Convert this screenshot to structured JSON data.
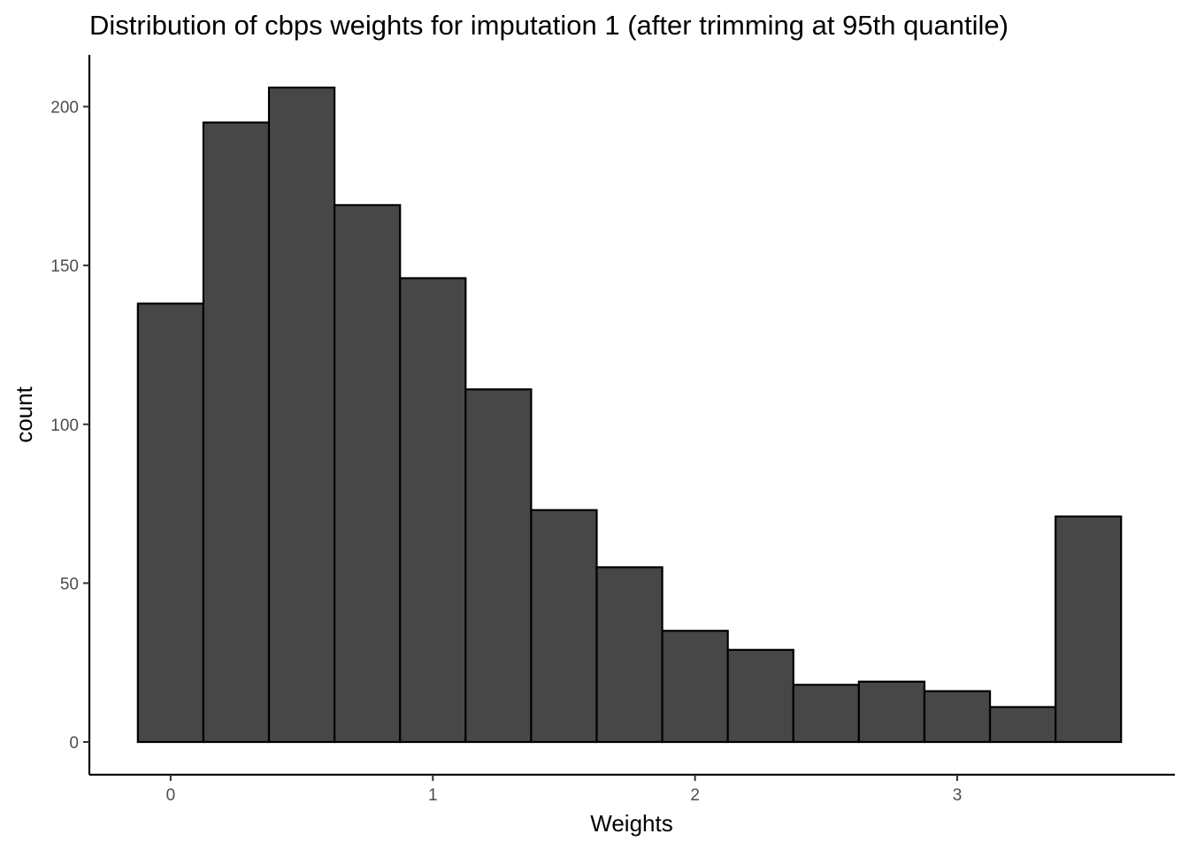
{
  "chart_data": {
    "type": "bar",
    "title": "Distribution of cbps weights for imputation 1 (after trimming at 95th quantile)",
    "xlabel": "Weights",
    "ylabel": "count",
    "bin_width": 0.25,
    "bins": [
      {
        "x_start": -0.125,
        "x_end": 0.125,
        "count": 138
      },
      {
        "x_start": 0.125,
        "x_end": 0.375,
        "count": 195
      },
      {
        "x_start": 0.375,
        "x_end": 0.625,
        "count": 206
      },
      {
        "x_start": 0.625,
        "x_end": 0.875,
        "count": 169
      },
      {
        "x_start": 0.875,
        "x_end": 1.125,
        "count": 146
      },
      {
        "x_start": 1.125,
        "x_end": 1.375,
        "count": 111
      },
      {
        "x_start": 1.375,
        "x_end": 1.625,
        "count": 73
      },
      {
        "x_start": 1.625,
        "x_end": 1.875,
        "count": 55
      },
      {
        "x_start": 1.875,
        "x_end": 2.125,
        "count": 35
      },
      {
        "x_start": 2.125,
        "x_end": 2.375,
        "count": 29
      },
      {
        "x_start": 2.375,
        "x_end": 2.625,
        "count": 18
      },
      {
        "x_start": 2.625,
        "x_end": 2.875,
        "count": 19
      },
      {
        "x_start": 2.875,
        "x_end": 3.125,
        "count": 16
      },
      {
        "x_start": 3.125,
        "x_end": 3.375,
        "count": 11
      },
      {
        "x_start": 3.375,
        "x_end": 3.625,
        "count": 71
      }
    ],
    "xlim": [
      -0.31,
      3.83
    ],
    "ylim": [
      -10.3,
      216.3
    ],
    "x_ticks": [
      "0",
      "1",
      "2",
      "3"
    ],
    "y_ticks": [
      "0",
      "50",
      "100",
      "150",
      "200"
    ],
    "grid": false,
    "legend": "none",
    "bar_fill": "#474747",
    "bar_outline": "#000000"
  }
}
